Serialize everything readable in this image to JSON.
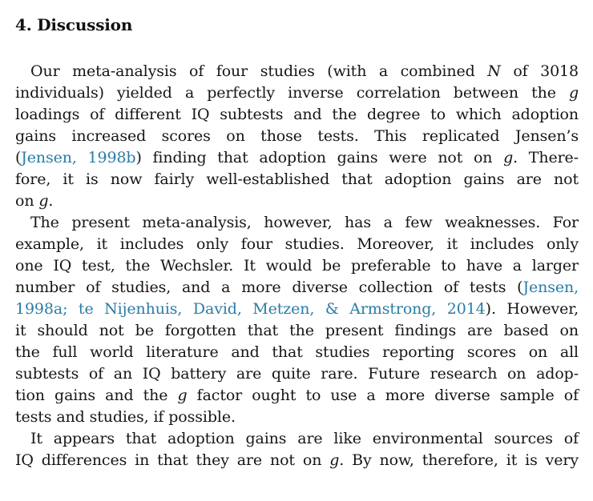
{
  "page": {
    "background": "#ffffff",
    "text_color": "#161616",
    "link_color": "#2a7ca7"
  },
  "section": {
    "heading": "4. Discussion",
    "paragraphs": [
      {
        "flush_last": false,
        "lines": [
          [
            {
              "t": "Our meta-analysis of four studies (with a combined "
            },
            {
              "t": "N",
              "s": "i"
            },
            {
              "t": " of 3018"
            }
          ],
          [
            {
              "t": "individuals) yielded a perfectly inverse correlation between the "
            },
            {
              "t": "g",
              "s": "i"
            }
          ],
          [
            {
              "t": "loadings of different IQ subtests and the degree to which adoption"
            }
          ],
          [
            {
              "t": "gains increased scores on those tests. This replicated Jensen’s"
            }
          ],
          [
            {
              "t": "("
            },
            {
              "t": "Jensen, 1998b",
              "s": "link"
            },
            {
              "t": ") finding that adoption gains were not on "
            },
            {
              "t": "g",
              "s": "i"
            },
            {
              "t": ". There-"
            }
          ],
          [
            {
              "t": "fore, it is now fairly well-established that adoption gains are not"
            }
          ],
          [
            {
              "t": "on "
            },
            {
              "t": "g",
              "s": "i"
            },
            {
              "t": "."
            }
          ]
        ]
      },
      {
        "flush_last": false,
        "lines": [
          [
            {
              "t": "The present meta-analysis, however, has a few weaknesses. For"
            }
          ],
          [
            {
              "t": "example, it includes only four studies. Moreover, it includes only"
            }
          ],
          [
            {
              "t": "one IQ test, the Wechsler. It would be preferable to have a larger"
            }
          ],
          [
            {
              "t": "number of studies, and a more diverse collection of tests ("
            },
            {
              "t": "Jensen,",
              "s": "link"
            }
          ],
          [
            {
              "t": "1998a; te Nijenhuis, David, Metzen, & Armstrong, 2014",
              "s": "link"
            },
            {
              "t": "). However,"
            }
          ],
          [
            {
              "t": "it should not be forgotten that the present findings are based on"
            }
          ],
          [
            {
              "t": "the full world literature and that studies reporting scores on all"
            }
          ],
          [
            {
              "t": "subtests of an IQ battery are quite rare. Future research on adop-"
            }
          ],
          [
            {
              "t": "tion gains and the "
            },
            {
              "t": "g",
              "s": "i"
            },
            {
              "t": " factor ought to use a more diverse sample of"
            }
          ],
          [
            {
              "t": "tests and studies, if possible."
            }
          ]
        ]
      },
      {
        "flush_last": true,
        "lines": [
          [
            {
              "t": "It appears that adoption gains are like environmental sources of"
            }
          ],
          [
            {
              "t": "IQ differences in that they are not on "
            },
            {
              "t": "g",
              "s": "i"
            },
            {
              "t": ". By now, therefore, it is very"
            }
          ]
        ]
      }
    ]
  }
}
